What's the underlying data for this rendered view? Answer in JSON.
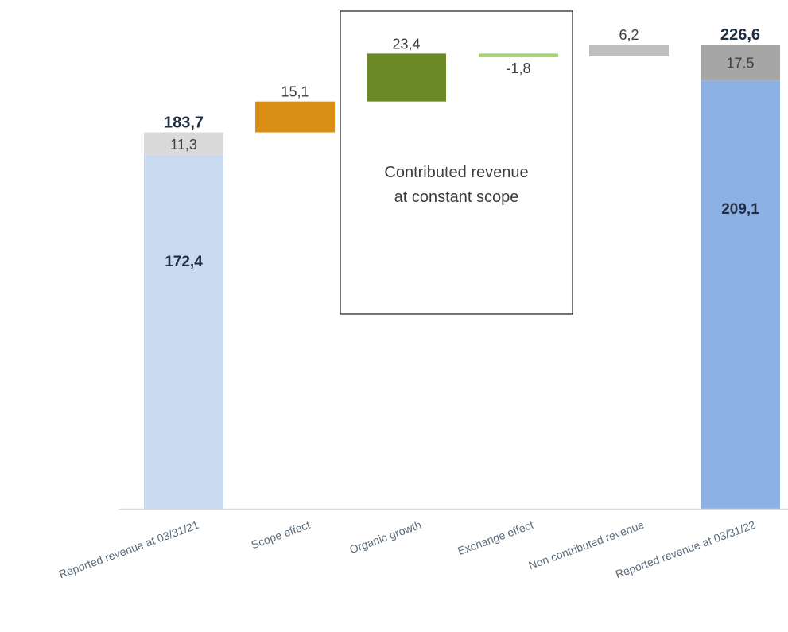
{
  "chart_data": {
    "type": "bar",
    "subtype": "waterfall",
    "categories": [
      "Reported revenue at 03/31/21",
      "Scope effect",
      "Organic growth",
      "Exchange effect",
      "Non contributed revenue",
      "Reported revenue at 03/31/22"
    ],
    "ylim": [
      0,
      226.6
    ],
    "grid": false,
    "legend": "none",
    "bars": [
      {
        "category": "Reported revenue at 03/31/21",
        "kind": "total",
        "total": 183.7,
        "total_label": "183,7",
        "segments": [
          {
            "value": 172.4,
            "label": "172,4",
            "color": "#c9d9f0",
            "label_color": "#1f2d45"
          },
          {
            "value": 11.3,
            "label": "11,3",
            "color": "#d9d9d9",
            "label_color": "#3f3f3f"
          }
        ]
      },
      {
        "category": "Scope effect",
        "kind": "delta",
        "start": 183.7,
        "value": 15.1,
        "label": "15,1",
        "color": "#da8e14"
      },
      {
        "category": "Organic growth",
        "kind": "delta",
        "start": 198.8,
        "value": 23.4,
        "label": "23,4",
        "color": "#6b8a27"
      },
      {
        "category": "Exchange effect",
        "kind": "delta",
        "start": 222.2,
        "value": -1.8,
        "label": "-1,8",
        "color": "#a8d36c"
      },
      {
        "category": "Non contributed revenue",
        "kind": "delta",
        "start": 220.4,
        "value": 6.2,
        "label": "6,2",
        "color": "#bfbfbf"
      },
      {
        "category": "Reported revenue at 03/31/22",
        "kind": "total",
        "total": 226.6,
        "total_label": "226,6",
        "segments": [
          {
            "value": 209.1,
            "label": "209,1",
            "color": "#8eb1e4",
            "label_color": "#1f2d45"
          },
          {
            "value": 17.5,
            "label": "17.5",
            "color": "#a6a6a6",
            "label_color": "#3f3f3f"
          }
        ]
      }
    ],
    "annotations": [
      {
        "text_lines": [
          "Contributed revenue",
          "at constant scope"
        ],
        "spans_categories": [
          "Organic growth",
          "Exchange effect"
        ]
      }
    ]
  },
  "colors": {
    "axis": "#d9d9d9",
    "category_text": "#5a6a7a",
    "value_text": "#3f3f3f",
    "total_text": "#1f2d45",
    "box_border": "#1a1a1a"
  }
}
